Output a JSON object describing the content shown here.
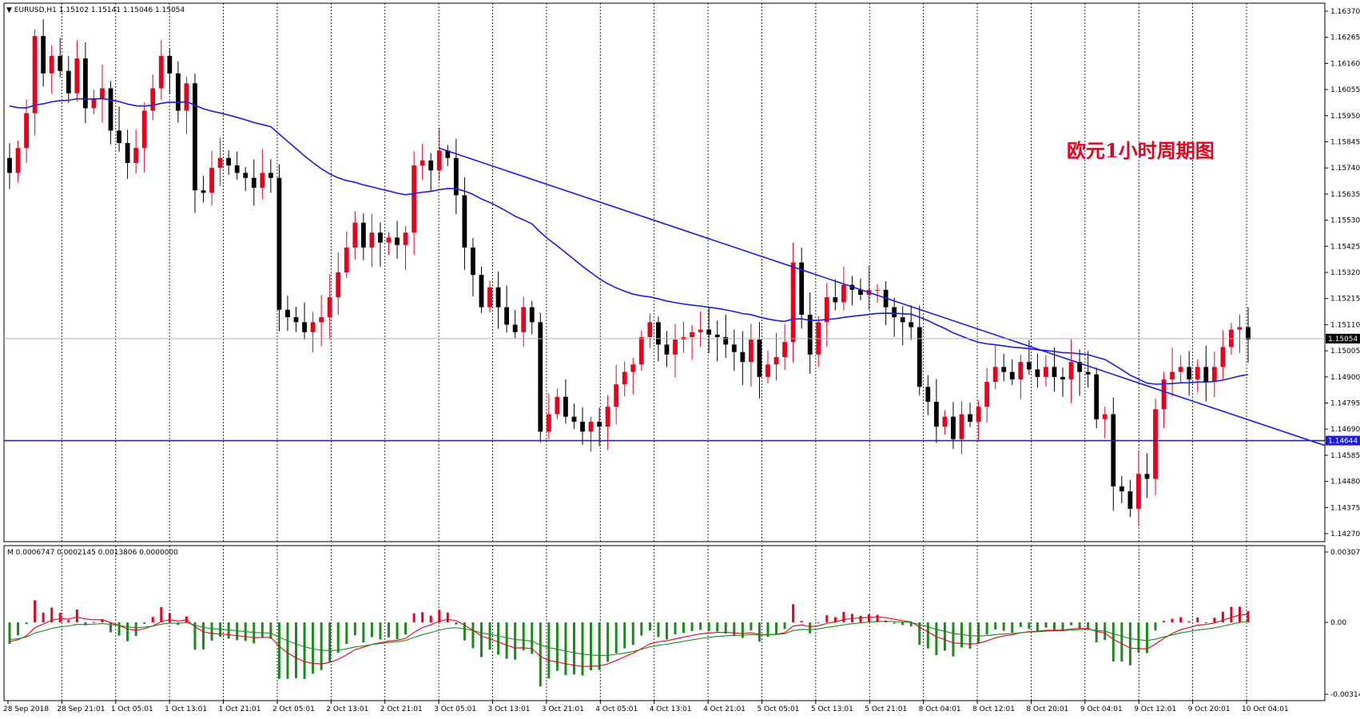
{
  "window": {
    "symbol_label": "EURUSD,H1",
    "ohlc_label": "1.15102 1.15141 1.15046 1.15054"
  },
  "annotation": "欧元1小时周期图",
  "colors": {
    "bull": "#e8001c",
    "bear": "#000000",
    "ma": "#1a1ae6",
    "trendline": "#1a1ae6",
    "support": "#1a1ae6",
    "hist_pos": "#e8001c",
    "hist_neg": "#1a8a1a",
    "signal_red": "#e8001c",
    "signal_green": "#1a8a1a",
    "grid": "#000000"
  },
  "chart_data": [
    {
      "type": "candlestick",
      "symbol": "EURUSD",
      "timeframe": "H1",
      "ylim": [
        1.1427,
        1.1637
      ],
      "y_ticks": [
        "1.16370",
        "1.16265",
        "1.16160",
        "1.16055",
        "1.15950",
        "1.15845",
        "1.15740",
        "1.15635",
        "1.15530",
        "1.15425",
        "1.15320",
        "1.15215",
        "1.15110",
        "1.15005",
        "1.14900",
        "1.14795",
        "1.14690",
        "1.14585",
        "1.14480",
        "1.14375",
        "1.14270"
      ],
      "x_ticks": [
        "28 Sep 2018",
        "28 Sep 21:01",
        "1 Oct 05:01",
        "1 Oct 13:01",
        "1 Oct 21:01",
        "2 Oct 05:01",
        "2 Oct 13:01",
        "2 Oct 21:01",
        "3 Oct 05:01",
        "3 Oct 13:01",
        "3 Oct 21:01",
        "4 Oct 05:01",
        "4 Oct 13:01",
        "4 Oct 21:01",
        "5 Oct 05:01",
        "5 Oct 13:01",
        "5 Oct 21:01",
        "8 Oct 04:01",
        "8 Oct 12:01",
        "8 Oct 20:01",
        "9 Oct 04:01",
        "9 Oct 12:01",
        "9 Oct 20:01",
        "10 Oct 04:01"
      ],
      "current_price": "1.15054",
      "current_price_value": 1.15054,
      "support_level": "1.14644",
      "support_value": 1.14644,
      "trendline": {
        "from": [
          "3 Oct 05:01",
          1.1582
        ],
        "to": [
          "10 Oct 04:01",
          1.1473
        ]
      },
      "closes": [
        1.1572,
        1.1582,
        1.1596,
        1.1627,
        1.1612,
        1.1619,
        1.1613,
        1.1604,
        1.1618,
        1.1598,
        1.1602,
        1.1606,
        1.1589,
        1.1584,
        1.1576,
        1.1582,
        1.1597,
        1.1606,
        1.1619,
        1.1612,
        1.1597,
        1.1608,
        1.1565,
        1.1564,
        1.1574,
        1.1578,
        1.1575,
        1.1572,
        1.157,
        1.1566,
        1.1572,
        1.157,
        1.1517,
        1.1514,
        1.1512,
        1.1508,
        1.1512,
        1.1514,
        1.1522,
        1.1532,
        1.1542,
        1.1552,
        1.1542,
        1.1548,
        1.1544,
        1.1546,
        1.1543,
        1.1548,
        1.1575,
        1.1577,
        1.1573,
        1.1581,
        1.1578,
        1.1563,
        1.1542,
        1.1531,
        1.1518,
        1.1526,
        1.1518,
        1.1511,
        1.1508,
        1.1518,
        1.1512,
        1.1468,
        1.1475,
        1.1482,
        1.1474,
        1.1472,
        1.1468,
        1.1472,
        1.147,
        1.1478,
        1.1487,
        1.1492,
        1.1495,
        1.1506,
        1.1512,
        1.1503,
        1.1499,
        1.1505,
        1.1506,
        1.1508,
        1.1509,
        1.1507,
        1.1506,
        1.1503,
        1.15,
        1.1496,
        1.1505,
        1.149,
        1.1495,
        1.1498,
        1.1504,
        1.1536,
        1.1515,
        1.1499,
        1.1512,
        1.1522,
        1.152,
        1.1527,
        1.1525,
        1.1523,
        1.1525,
        1.1525,
        1.1518,
        1.1514,
        1.1512,
        1.151,
        1.1486,
        1.148,
        1.147,
        1.1474,
        1.1465,
        1.1475,
        1.1472,
        1.1478,
        1.1488,
        1.1494,
        1.1492,
        1.1489,
        1.1496,
        1.1493,
        1.149,
        1.1494,
        1.149,
        1.1489,
        1.1496,
        1.1492,
        1.1491,
        1.1473,
        1.1475,
        1.1446,
        1.1444,
        1.1437,
        1.1451,
        1.1449,
        1.1477,
        1.1489,
        1.1492,
        1.1494,
        1.1489,
        1.1494,
        1.1488,
        1.1494,
        1.1502,
        1.1509,
        1.151,
        1.1505
      ]
    },
    {
      "type": "histogram",
      "indicator_label": "M 0.0006747 0.0002145 0.0013806 0.0000000",
      "ylim": [
        -0.003142,
        0.003076
      ],
      "y_ticks": [
        "0.003076",
        "0.00",
        "-0.003142"
      ]
    }
  ]
}
